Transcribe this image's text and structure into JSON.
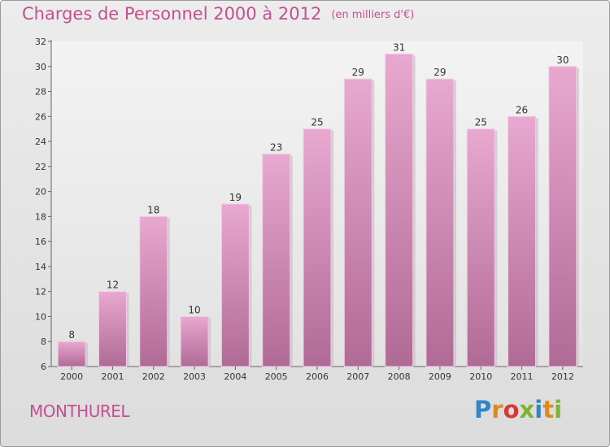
{
  "header": {
    "title": "Charges de Personnel 2000 à 2012",
    "unit": "(en milliers d'€)"
  },
  "footer": {
    "commune": "MONTHUREL",
    "logo_text": "Proxiti"
  },
  "colors": {
    "title": "#c44f90",
    "bar_top": "#e8a8d0",
    "bar_bottom": "#b06a96"
  },
  "chart_data": {
    "type": "bar",
    "title": "Charges de Personnel 2000 à 2012",
    "subtitle": "(en milliers d'€)",
    "categories": [
      "2000",
      "2001",
      "2002",
      "2003",
      "2004",
      "2005",
      "2006",
      "2007",
      "2008",
      "2009",
      "2010",
      "2011",
      "2012"
    ],
    "values": [
      8,
      12,
      18,
      10,
      19,
      23,
      25,
      29,
      31,
      29,
      25,
      26,
      30
    ],
    "ylim": [
      6,
      32
    ],
    "yticks": [
      6,
      8,
      10,
      12,
      14,
      16,
      18,
      20,
      22,
      24,
      26,
      28,
      30,
      32
    ],
    "grid": false,
    "data_labels": true
  }
}
